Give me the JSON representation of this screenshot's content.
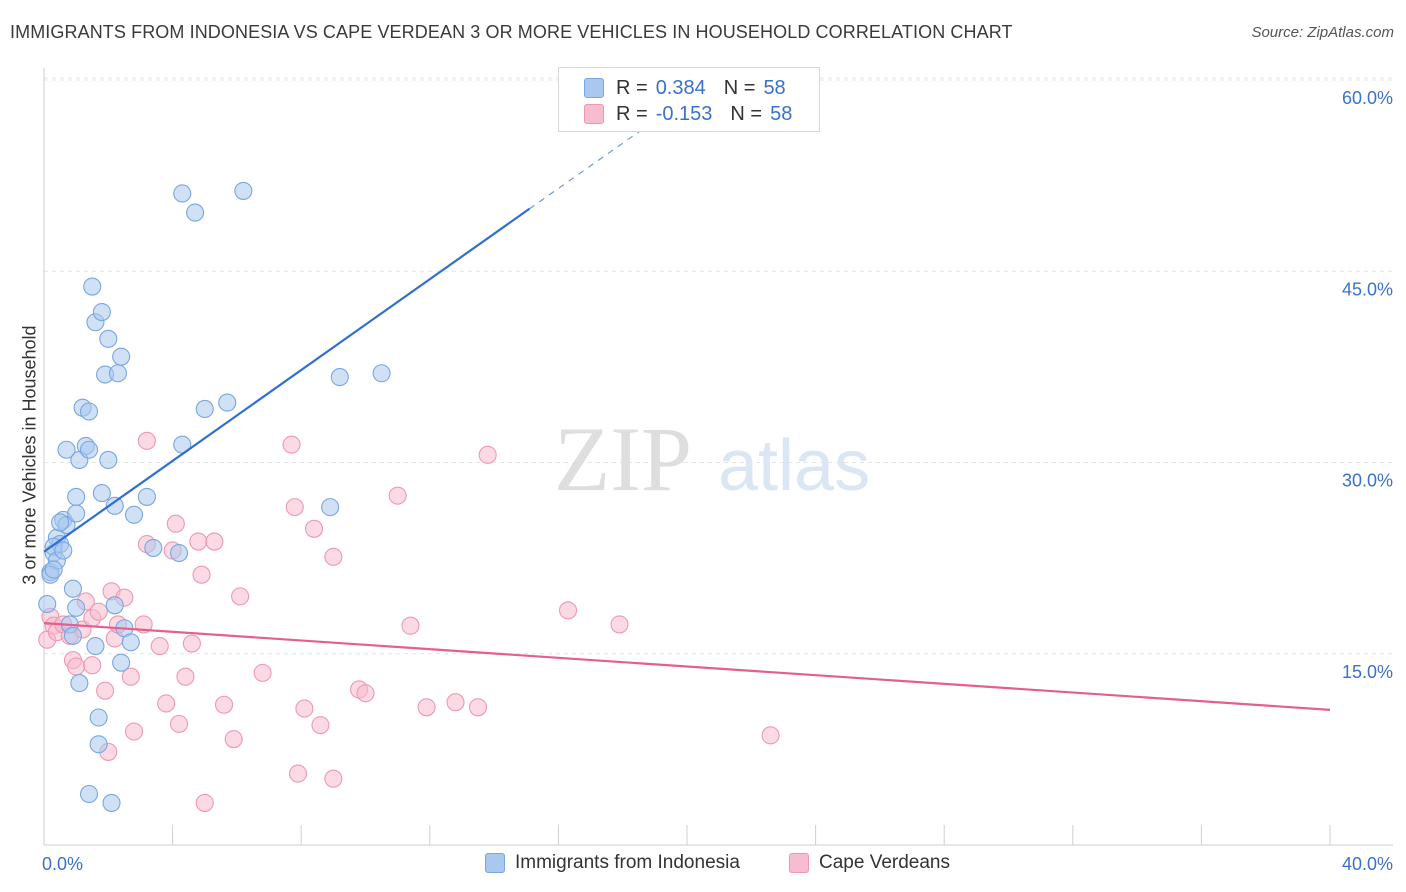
{
  "header": {
    "title": "IMMIGRANTS FROM INDONESIA VS CAPE VERDEAN 3 OR MORE VEHICLES IN HOUSEHOLD CORRELATION CHART",
    "source": "Source: ZipAtlas.com"
  },
  "watermark": {
    "zip": "ZIP",
    "atlas": "atlas"
  },
  "legend": {
    "r_label": "R =",
    "n_label": "N =",
    "series": [
      {
        "name": "Immigrants from Indonesia",
        "r": "0.384",
        "n": "58",
        "color": "#a9c8ef",
        "stroke": "#7aa6e0"
      },
      {
        "name": "Cape Verdeans",
        "r": "-0.153",
        "n": "58",
        "color": "#f7bccd",
        "stroke": "#ef98b3"
      }
    ]
  },
  "chart_data": {
    "type": "scatter",
    "title": "IMMIGRANTS FROM INDONESIA VS CAPE VERDEAN 3 OR MORE VEHICLES IN HOUSEHOLD CORRELATION CHART",
    "xlabel": "",
    "ylabel": "3 or more Vehicles in Household",
    "xlim": [
      0,
      40
    ],
    "ylim": [
      0,
      60
    ],
    "x_tick_labels": [
      "0.0%",
      "40.0%"
    ],
    "y_ticks": [
      15,
      30,
      45,
      60
    ],
    "y_tick_labels": [
      "15.0%",
      "30.0%",
      "45.0%",
      "60.0%"
    ],
    "grid": true,
    "series": [
      {
        "name": "Immigrants from Indonesia",
        "color": "#a9c8ef",
        "line_color": "#2f6fd0",
        "trend": {
          "x": [
            0,
            15.1
          ],
          "y": [
            23.0,
            49.9
          ],
          "dashed_to": [
            19.5,
            57.7
          ]
        },
        "points": [
          [
            0.1,
            18.9
          ],
          [
            0.2,
            21.4
          ],
          [
            0.3,
            22.9
          ],
          [
            0.4,
            24.1
          ],
          [
            0.5,
            23.6
          ],
          [
            0.3,
            23.4
          ],
          [
            0.6,
            25.5
          ],
          [
            0.7,
            25.1
          ],
          [
            0.4,
            22.3
          ],
          [
            0.2,
            21.2
          ],
          [
            0.8,
            17.3
          ],
          [
            0.9,
            16.4
          ],
          [
            1.0,
            18.6
          ],
          [
            0.9,
            20.1
          ],
          [
            1.0,
            27.3
          ],
          [
            1.1,
            30.2
          ],
          [
            0.7,
            31.0
          ],
          [
            1.2,
            34.3
          ],
          [
            1.3,
            31.3
          ],
          [
            1.4,
            31.0
          ],
          [
            1.4,
            34.0
          ],
          [
            1.5,
            43.8
          ],
          [
            1.6,
            41.0
          ],
          [
            1.8,
            41.8
          ],
          [
            1.8,
            27.6
          ],
          [
            1.9,
            36.9
          ],
          [
            2.0,
            30.2
          ],
          [
            2.0,
            39.7
          ],
          [
            2.2,
            26.6
          ],
          [
            2.3,
            37.0
          ],
          [
            2.4,
            38.3
          ],
          [
            2.4,
            14.3
          ],
          [
            2.5,
            17.0
          ],
          [
            2.7,
            15.9
          ],
          [
            2.8,
            25.9
          ],
          [
            3.2,
            27.3
          ],
          [
            3.4,
            23.3
          ],
          [
            4.2,
            22.9
          ],
          [
            4.3,
            31.4
          ],
          [
            4.3,
            51.1
          ],
          [
            4.7,
            49.6
          ],
          [
            5.0,
            34.2
          ],
          [
            5.7,
            34.7
          ],
          [
            6.2,
            51.3
          ],
          [
            8.9,
            26.5
          ],
          [
            9.2,
            36.7
          ],
          [
            10.5,
            37.0
          ],
          [
            1.1,
            12.7
          ],
          [
            1.7,
            10.0
          ],
          [
            1.7,
            7.9
          ],
          [
            1.4,
            4.0
          ],
          [
            2.1,
            3.3
          ],
          [
            1.6,
            15.6
          ],
          [
            0.6,
            23.1
          ],
          [
            2.2,
            18.8
          ],
          [
            1.0,
            26.0
          ],
          [
            0.5,
            25.3
          ],
          [
            0.3,
            21.6
          ]
        ]
      },
      {
        "name": "Cape Verdeans",
        "color": "#f7bccd",
        "line_color": "#e35f8d",
        "trend": {
          "x": [
            0,
            40
          ],
          "y": [
            17.4,
            10.6
          ]
        },
        "points": [
          [
            0.1,
            16.1
          ],
          [
            0.2,
            17.9
          ],
          [
            0.3,
            17.2
          ],
          [
            0.4,
            16.7
          ],
          [
            0.6,
            17.3
          ],
          [
            0.8,
            16.4
          ],
          [
            0.9,
            14.5
          ],
          [
            1.0,
            14.0
          ],
          [
            1.2,
            16.9
          ],
          [
            1.3,
            19.1
          ],
          [
            1.5,
            14.1
          ],
          [
            1.5,
            17.8
          ],
          [
            1.7,
            18.3
          ],
          [
            1.9,
            12.1
          ],
          [
            2.0,
            7.3
          ],
          [
            2.1,
            19.9
          ],
          [
            2.2,
            16.2
          ],
          [
            2.3,
            17.3
          ],
          [
            2.5,
            19.4
          ],
          [
            2.7,
            13.2
          ],
          [
            2.8,
            8.9
          ],
          [
            3.1,
            17.3
          ],
          [
            3.2,
            23.6
          ],
          [
            3.2,
            31.7
          ],
          [
            3.6,
            15.6
          ],
          [
            3.8,
            11.1
          ],
          [
            4.0,
            23.1
          ],
          [
            4.1,
            25.2
          ],
          [
            4.2,
            9.5
          ],
          [
            4.4,
            13.2
          ],
          [
            4.6,
            15.8
          ],
          [
            4.8,
            23.8
          ],
          [
            4.9,
            21.2
          ],
          [
            5.0,
            3.3
          ],
          [
            5.3,
            23.8
          ],
          [
            5.6,
            11.0
          ],
          [
            5.9,
            8.3
          ],
          [
            6.1,
            19.5
          ],
          [
            6.8,
            13.5
          ],
          [
            7.7,
            31.4
          ],
          [
            7.8,
            26.5
          ],
          [
            7.9,
            5.6
          ],
          [
            8.1,
            10.7
          ],
          [
            8.4,
            24.8
          ],
          [
            8.6,
            9.4
          ],
          [
            9.0,
            22.6
          ],
          [
            9.0,
            5.2
          ],
          [
            9.8,
            12.2
          ],
          [
            10.0,
            11.9
          ],
          [
            11.0,
            27.4
          ],
          [
            11.4,
            17.2
          ],
          [
            11.9,
            10.8
          ],
          [
            12.8,
            11.2
          ],
          [
            13.5,
            10.8
          ],
          [
            13.8,
            30.6
          ],
          [
            16.3,
            18.4
          ],
          [
            17.9,
            17.3
          ],
          [
            22.6,
            8.6
          ]
        ]
      }
    ]
  }
}
